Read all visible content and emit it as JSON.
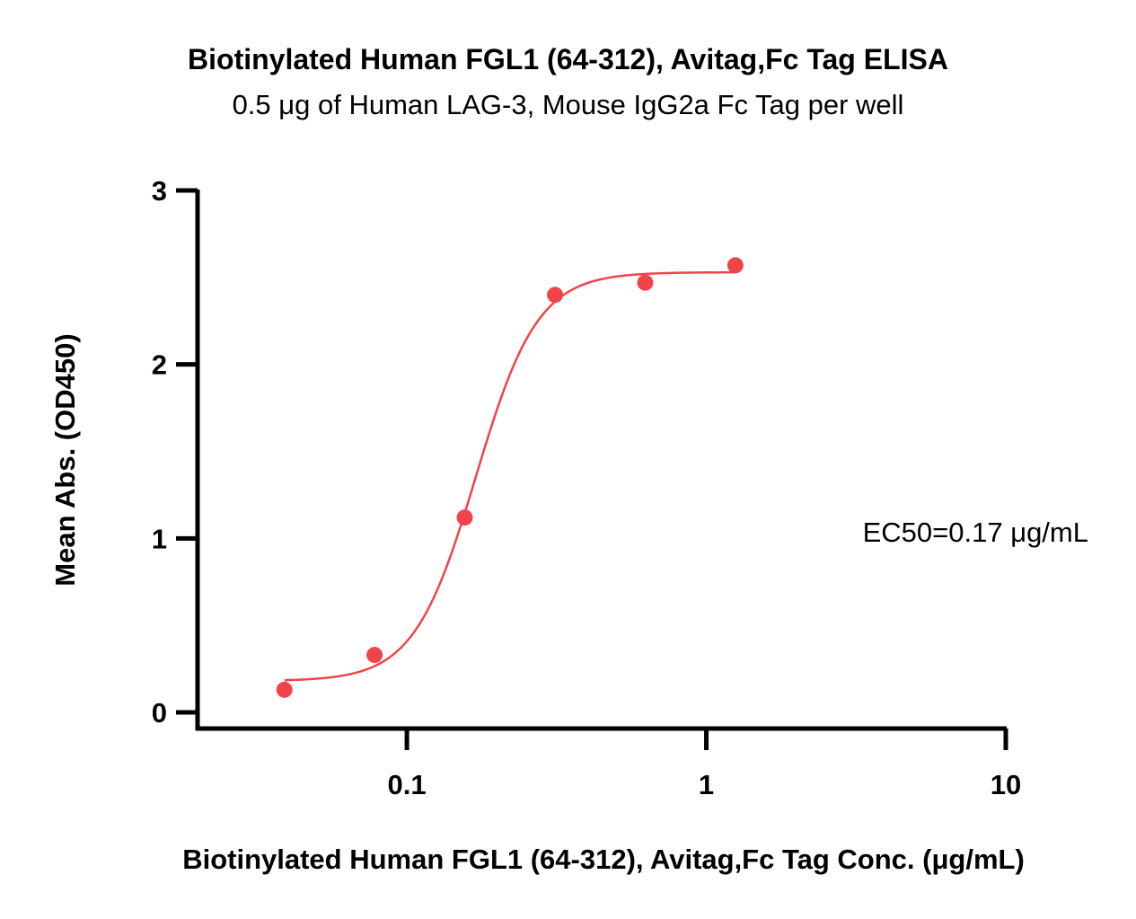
{
  "chart_data": {
    "type": "scatter",
    "title": "Biotinylated Human FGL1 (64-312), Avitag,Fc Tag ELISA",
    "subtitle": "0.5 μg of Human LAG-3, Mouse IgG2a Fc Tag per well",
    "xlabel": "Biotinylated Human FGL1 (64-312), Avitag,Fc Tag Conc. (μg/mL)",
    "ylabel": "Mean Abs. (OD450)",
    "x_scale": "log",
    "xlim": [
      0.02,
      10
    ],
    "ylim": [
      0,
      3
    ],
    "x_ticks": [
      0.1,
      1,
      10
    ],
    "x_tick_labels": [
      "0.1",
      "1",
      "10"
    ],
    "y_ticks": [
      0,
      1,
      2,
      3
    ],
    "y_tick_labels": [
      "0",
      "1",
      "2",
      "3"
    ],
    "grid": false,
    "series": [
      {
        "color": "#f0444a",
        "points": [
          {
            "x": 0.039,
            "y": 0.13
          },
          {
            "x": 0.078,
            "y": 0.33
          },
          {
            "x": 0.156,
            "y": 1.12
          },
          {
            "x": 0.3125,
            "y": 2.4
          },
          {
            "x": 0.625,
            "y": 2.47
          },
          {
            "x": 1.25,
            "y": 2.57
          }
        ],
        "fit": {
          "bottom": 0.18,
          "top": 2.53,
          "ec50": 0.17,
          "hill": 4.2
        }
      }
    ],
    "annotations": [
      {
        "text": "EC50=0.17 μg/mL"
      }
    ]
  }
}
